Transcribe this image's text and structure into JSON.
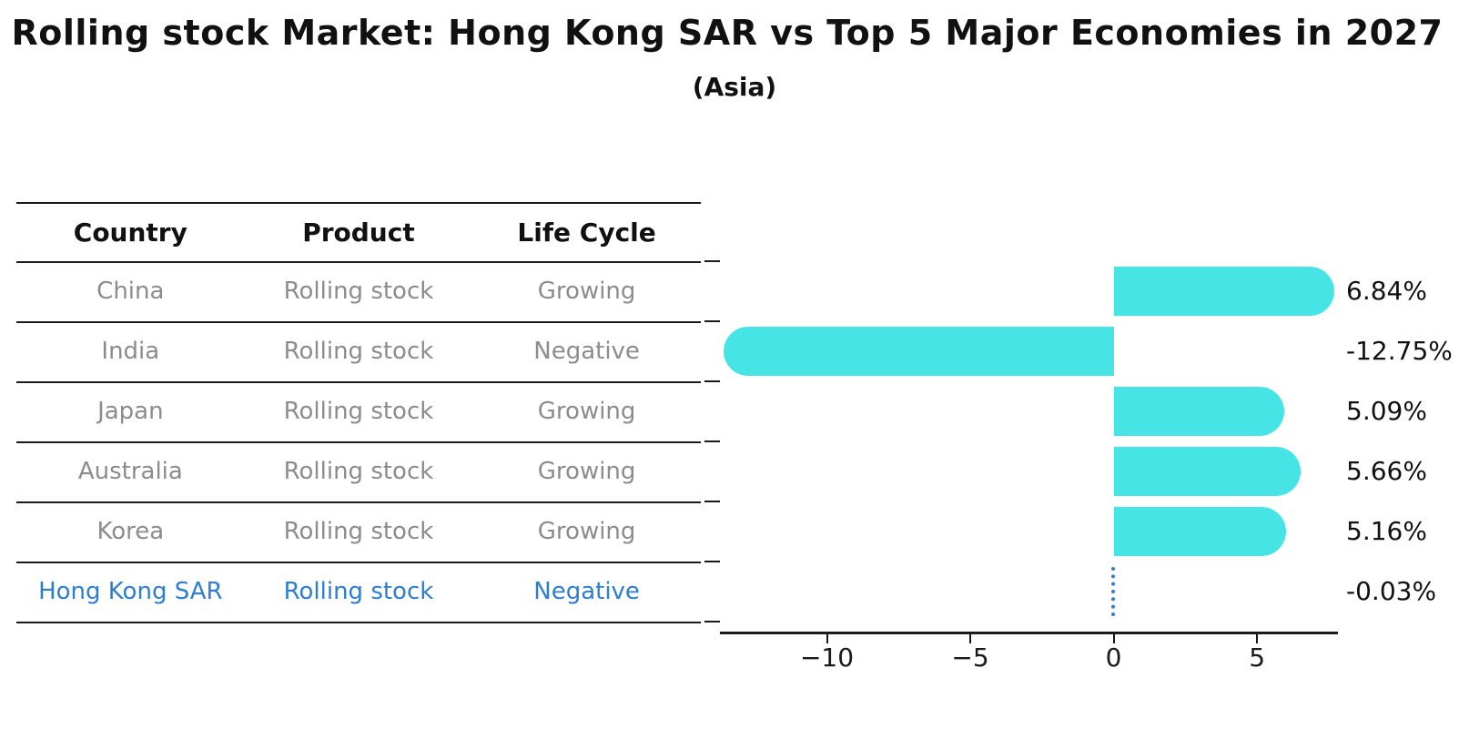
{
  "title": "Rolling stock Market: Hong Kong SAR vs Top 5 Major Economies in 2027",
  "subtitle": "(Asia)",
  "table": {
    "headers": [
      "Country",
      "Product",
      "Life Cycle"
    ],
    "rows": [
      {
        "country": "China",
        "product": "Rolling stock",
        "life_cycle": "Growing",
        "highlight": false
      },
      {
        "country": "India",
        "product": "Rolling stock",
        "life_cycle": "Negative",
        "highlight": false
      },
      {
        "country": "Japan",
        "product": "Rolling stock",
        "life_cycle": "Growing",
        "highlight": false
      },
      {
        "country": "Australia",
        "product": "Rolling stock",
        "life_cycle": "Growing",
        "highlight": false
      },
      {
        "country": "Korea",
        "product": "Rolling stock",
        "life_cycle": "Growing",
        "highlight": false
      },
      {
        "country": "Hong Kong SAR",
        "product": "Rolling stock",
        "life_cycle": "Negative",
        "highlight": true
      }
    ]
  },
  "chart_data": {
    "type": "bar",
    "orientation": "horizontal",
    "categories": [
      "China",
      "India",
      "Japan",
      "Australia",
      "Korea",
      "Hong Kong SAR"
    ],
    "values": [
      6.84,
      -12.75,
      5.09,
      5.66,
      5.16,
      -0.03
    ],
    "value_labels": [
      "6.84%",
      "-12.75%",
      "5.09%",
      "5.66%",
      "5.16%",
      "-0.03%"
    ],
    "x_ticks": [
      -10,
      -5,
      0,
      5
    ],
    "x_tick_labels": [
      "−10",
      "−5",
      "0",
      "5"
    ],
    "xlim": [
      -13.73,
      7.82
    ],
    "grid": false,
    "legend": false,
    "bar_color": "#47E4E6",
    "highlight_color": "#2d7dd2",
    "highlight_index": 5,
    "title": "Rolling stock Market: Hong Kong SAR vs Top 5 Major Economies in 2027",
    "subtitle": "(Asia)",
    "xlabel": "",
    "ylabel": ""
  },
  "colors": {
    "bar": "#47E4E6",
    "highlight": "#2d7dd2",
    "row_text": "#8c8c8c",
    "header_text": "#111111",
    "axis": "#1a1a1a"
  }
}
